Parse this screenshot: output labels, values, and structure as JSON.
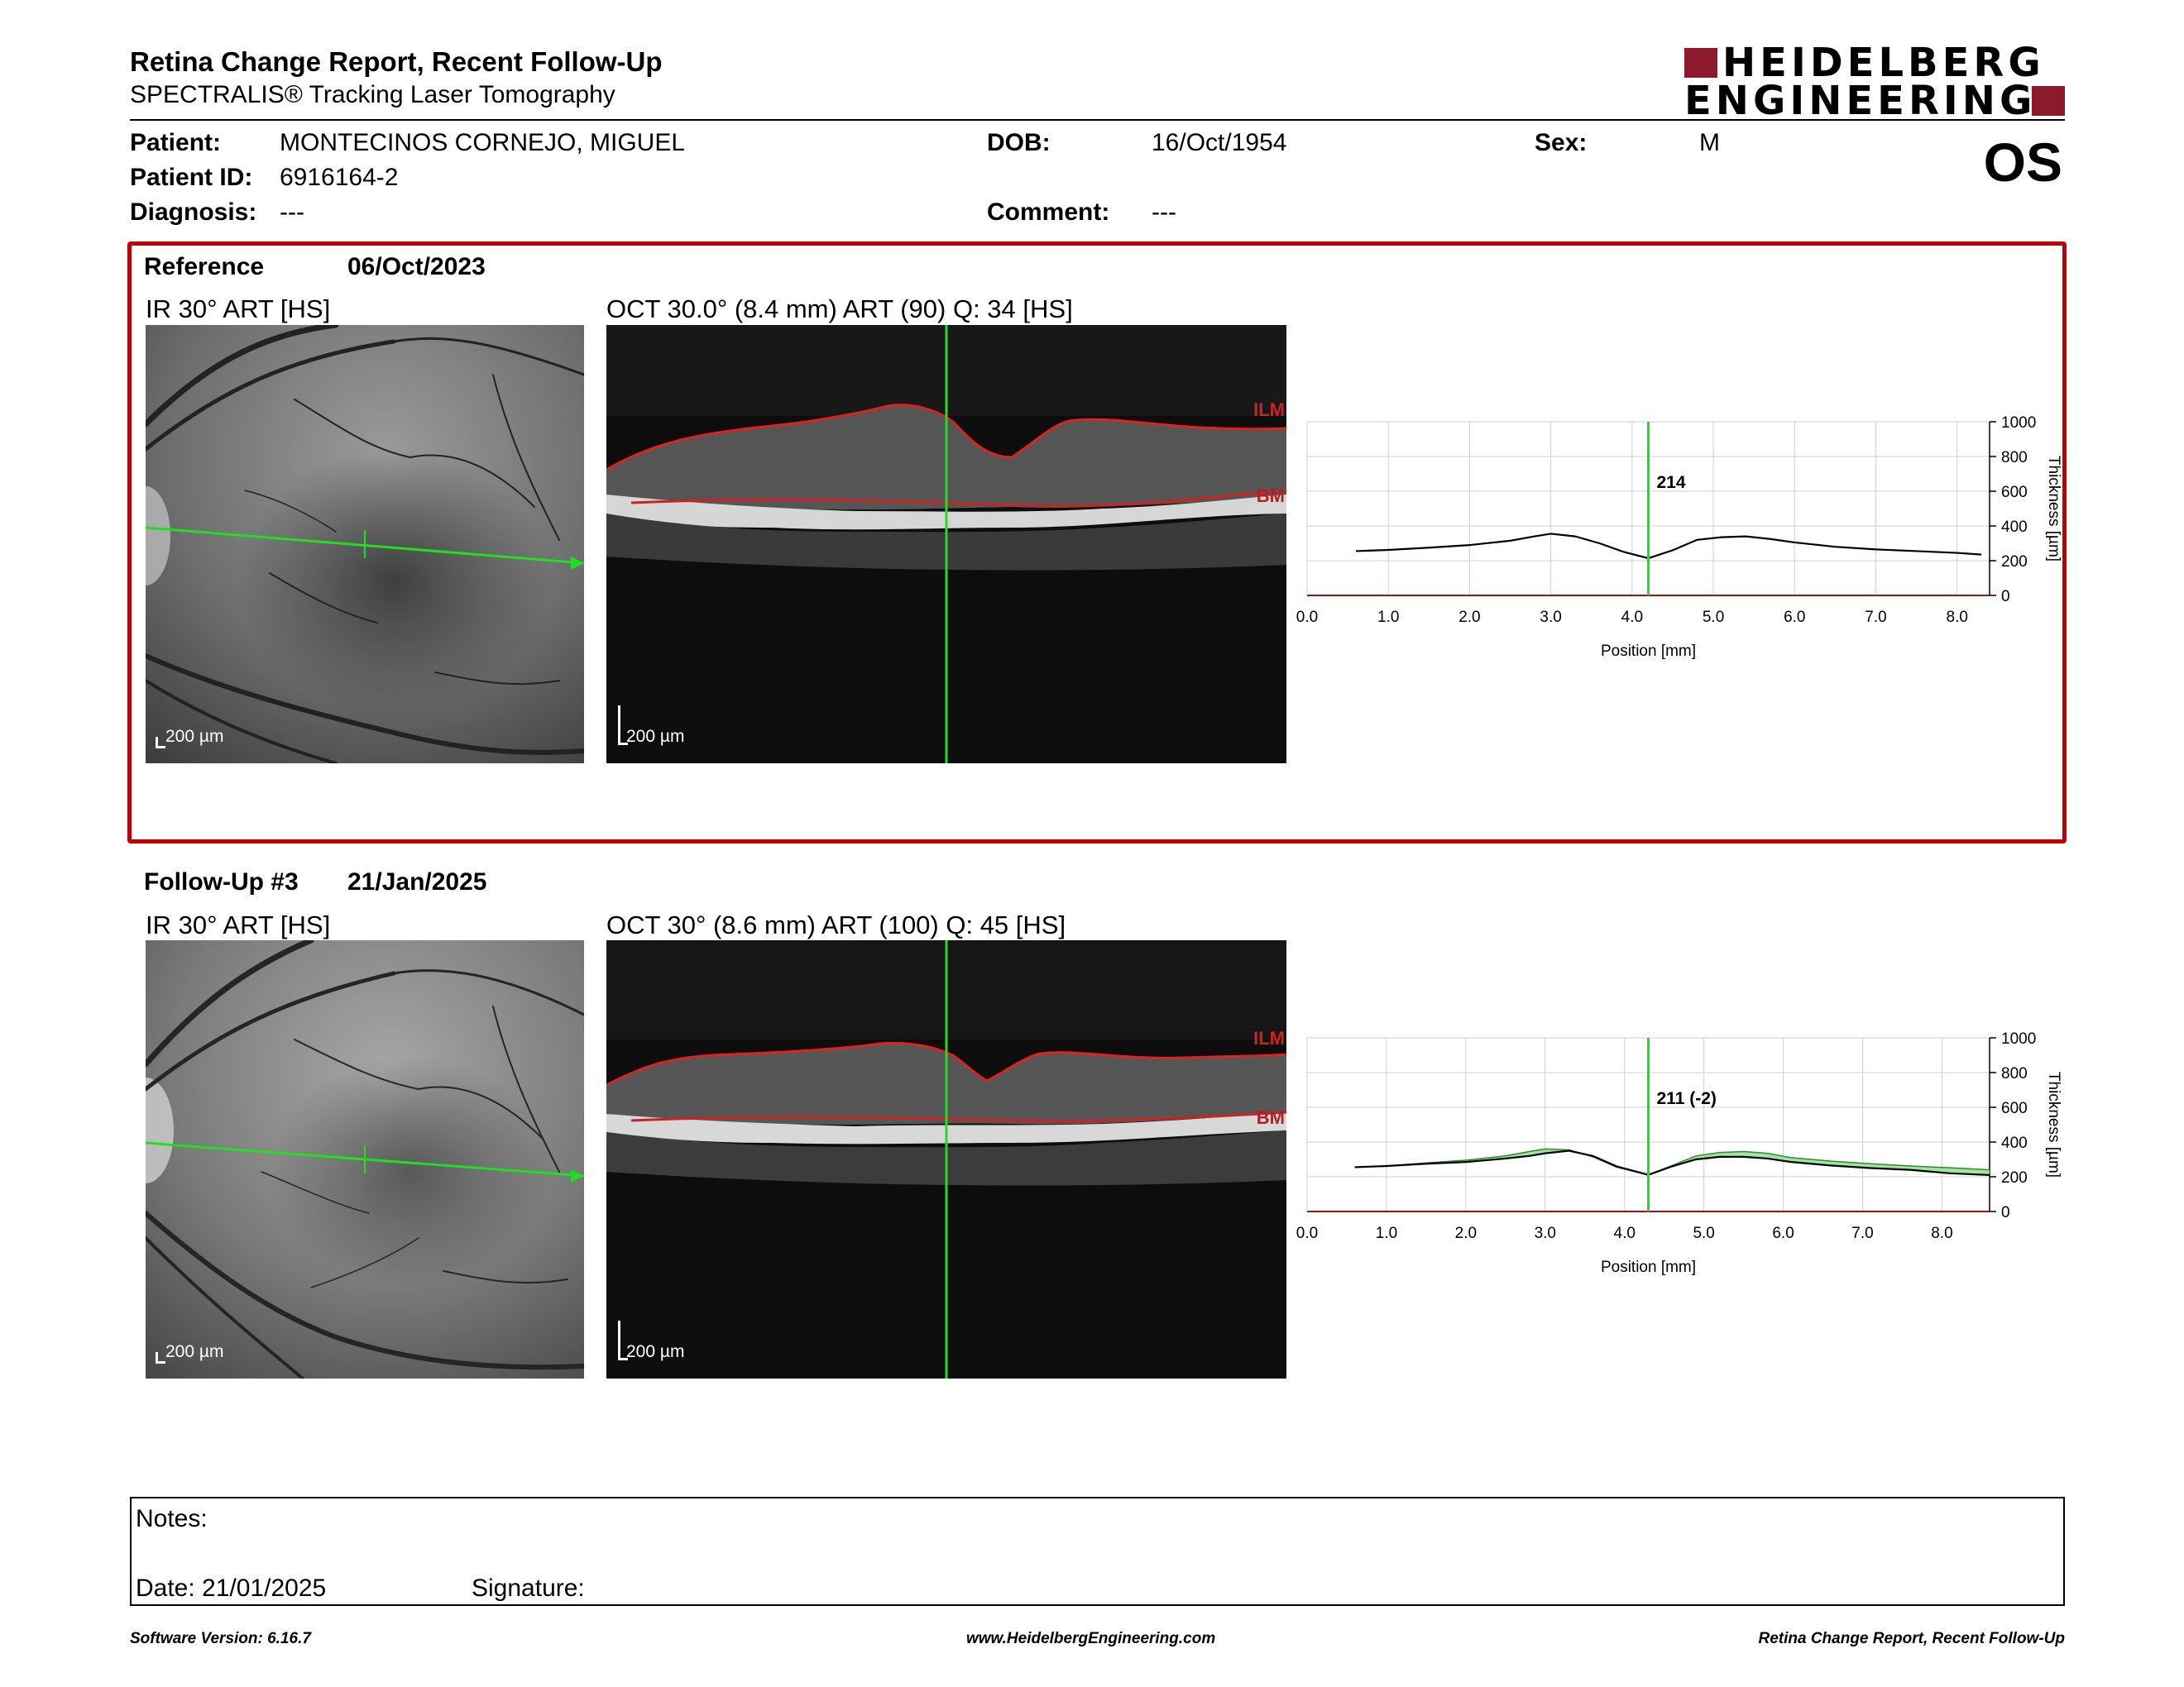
{
  "header": {
    "title": "Retina Change Report, Recent Follow-Up",
    "subtitle": "SPECTRALIS® Tracking Laser Tomography",
    "logo_line1": "HEIDELBERG",
    "logo_line2": "ENGINEERING",
    "eye": "OS"
  },
  "patient": {
    "name_label": "Patient:",
    "name": "MONTECINOS CORNEJO, MIGUEL",
    "dob_label": "DOB:",
    "dob": "16/Oct/1954",
    "sex_label": "Sex:",
    "sex": "M",
    "id_label": "Patient ID:",
    "id": "6916164-2",
    "diagnosis_label": "Diagnosis:",
    "diagnosis": "---",
    "comment_label": "Comment:",
    "comment": "---"
  },
  "reference": {
    "label": "Reference",
    "date": "06/Oct/2023",
    "ir_title": "IR 30° ART [HS]",
    "oct_title": "OCT 30.0° (8.4 mm) ART (90) Q: 34 [HS]",
    "scale_ir": "200 µm",
    "scale_oct": "200 µm",
    "layer_top": "ILM",
    "layer_bottom": "BM"
  },
  "followup": {
    "label": "Follow-Up #3",
    "date": "21/Jan/2025",
    "ir_title": "IR 30° ART [HS]",
    "oct_title": "OCT 30° (8.6 mm) ART (100) Q: 45 [HS]",
    "scale_ir": "200 µm",
    "scale_oct": "200 µm",
    "layer_top": "ILM",
    "layer_bottom": "BM"
  },
  "colors": {
    "accent_red": "#c00000",
    "scan_green": "#22dd22",
    "diff_fill": "#90e090",
    "logo_red": "#8b1a2a"
  },
  "chart_data": [
    {
      "type": "line",
      "title": "",
      "xlabel": "Position [mm]",
      "ylabel": "Thickness [µm]",
      "xlim": [
        0,
        8.4
      ],
      "ylim": [
        0,
        1000
      ],
      "x_ticks": [
        "0.0",
        "1.0",
        "2.0",
        "3.0",
        "4.0",
        "5.0",
        "6.0",
        "7.0",
        "8.0"
      ],
      "y_ticks": [
        "0",
        "200",
        "400",
        "600",
        "800",
        "1000"
      ],
      "cursor_x": 4.2,
      "cursor_label": "214",
      "grid": true,
      "series": [
        {
          "x": [
            0.6,
            1.0,
            1.5,
            2.0,
            2.5,
            2.8,
            3.0,
            3.3,
            3.6,
            3.9,
            4.2,
            4.5,
            4.8,
            5.1,
            5.4,
            5.7,
            6.0,
            6.5,
            7.0,
            7.5,
            8.0,
            8.3
          ],
          "y": [
            255,
            262,
            275,
            290,
            315,
            340,
            355,
            340,
            300,
            250,
            214,
            260,
            320,
            335,
            340,
            325,
            305,
            280,
            265,
            255,
            245,
            235
          ]
        }
      ]
    },
    {
      "type": "line",
      "title": "",
      "xlabel": "Position [mm]",
      "ylabel": "Thickness [µm]",
      "xlim": [
        0,
        8.6
      ],
      "ylim": [
        0,
        1000
      ],
      "x_ticks": [
        "0.0",
        "1.0",
        "2.0",
        "3.0",
        "4.0",
        "5.0",
        "6.0",
        "7.0",
        "8.0"
      ],
      "y_ticks": [
        "0",
        "200",
        "400",
        "600",
        "800",
        "1000"
      ],
      "cursor_x": 4.3,
      "cursor_label": "211 (-2)",
      "grid": true,
      "series": [
        {
          "x": [
            0.6,
            1.0,
            1.5,
            2.0,
            2.5,
            2.8,
            3.0,
            3.3,
            3.6,
            3.9,
            4.3,
            4.6,
            4.9,
            5.2,
            5.5,
            5.8,
            6.1,
            6.6,
            7.1,
            7.6,
            8.1,
            8.6
          ],
          "y": [
            255,
            262,
            275,
            285,
            305,
            320,
            335,
            350,
            320,
            260,
            211,
            260,
            300,
            315,
            315,
            305,
            285,
            265,
            250,
            240,
            220,
            210
          ]
        },
        {
          "x": [
            0.6,
            1.0,
            1.5,
            2.0,
            2.5,
            2.8,
            3.0,
            3.3,
            3.6,
            3.9,
            4.3,
            4.6,
            4.9,
            5.2,
            5.5,
            5.8,
            6.1,
            6.6,
            7.1,
            7.6,
            8.1,
            8.6
          ],
          "y": [
            255,
            262,
            280,
            295,
            320,
            345,
            360,
            355,
            315,
            255,
            211,
            265,
            320,
            340,
            345,
            335,
            310,
            290,
            275,
            262,
            252,
            240
          ]
        }
      ]
    }
  ],
  "notes": {
    "notes_label": "Notes:",
    "date_label": "Date: 21/01/2025",
    "signature_label": "Signature:"
  },
  "footer": {
    "software": "Software Version: 6.16.7",
    "website": "www.HeidelbergEngineering.com",
    "report": "Retina Change Report, Recent Follow-Up"
  }
}
